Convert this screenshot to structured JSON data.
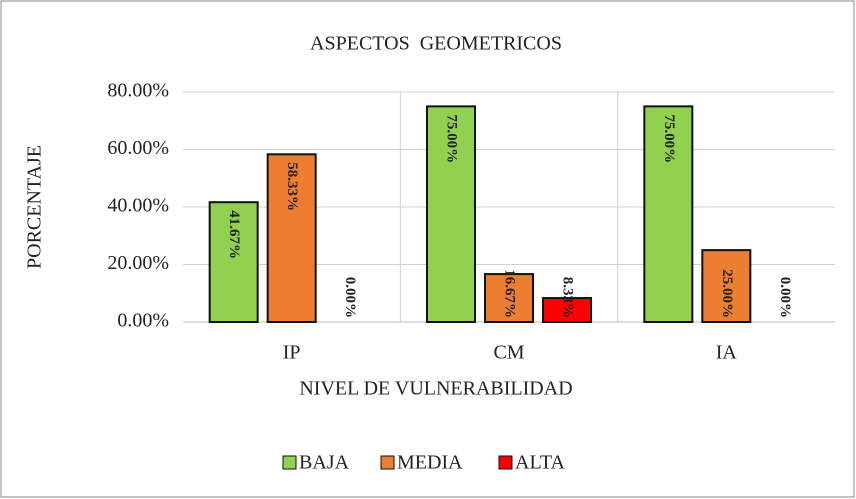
{
  "chart_data": {
    "type": "bar",
    "title": "ASPECTOS  GEOMETRICOS",
    "x_label": "NIVEL DE VULNERABILIDAD",
    "y_label": "PORCENTAJE",
    "categories": [
      "IP",
      "CM",
      "IA"
    ],
    "series": [
      {
        "name": "BAJA",
        "color": "#92d050",
        "values": [
          41.67,
          75,
          75
        ],
        "value_labels": [
          "41.67%",
          "75.00%",
          "75.00%"
        ]
      },
      {
        "name": "MEDIA",
        "color": "#ed7d31",
        "values": [
          58.33,
          16.67,
          25
        ],
        "value_labels": [
          "58.33%",
          "16.67%",
          "25.00%"
        ]
      },
      {
        "name": "ALTA",
        "color": "#ff0000",
        "values": [
          0,
          8.33,
          0
        ],
        "value_labels": [
          "0.00%",
          "8.33%",
          "0.00%"
        ]
      }
    ],
    "ylim": [
      0,
      80
    ],
    "yticks": [
      {
        "value": 0,
        "label": "0.00%"
      },
      {
        "value": 20,
        "label": "20.00%"
      },
      {
        "value": 40,
        "label": "40.00%"
      },
      {
        "value": 60,
        "label": "60.00%"
      },
      {
        "value": 80,
        "label": "80.00%"
      }
    ],
    "grid": true,
    "legend": "bottom"
  }
}
